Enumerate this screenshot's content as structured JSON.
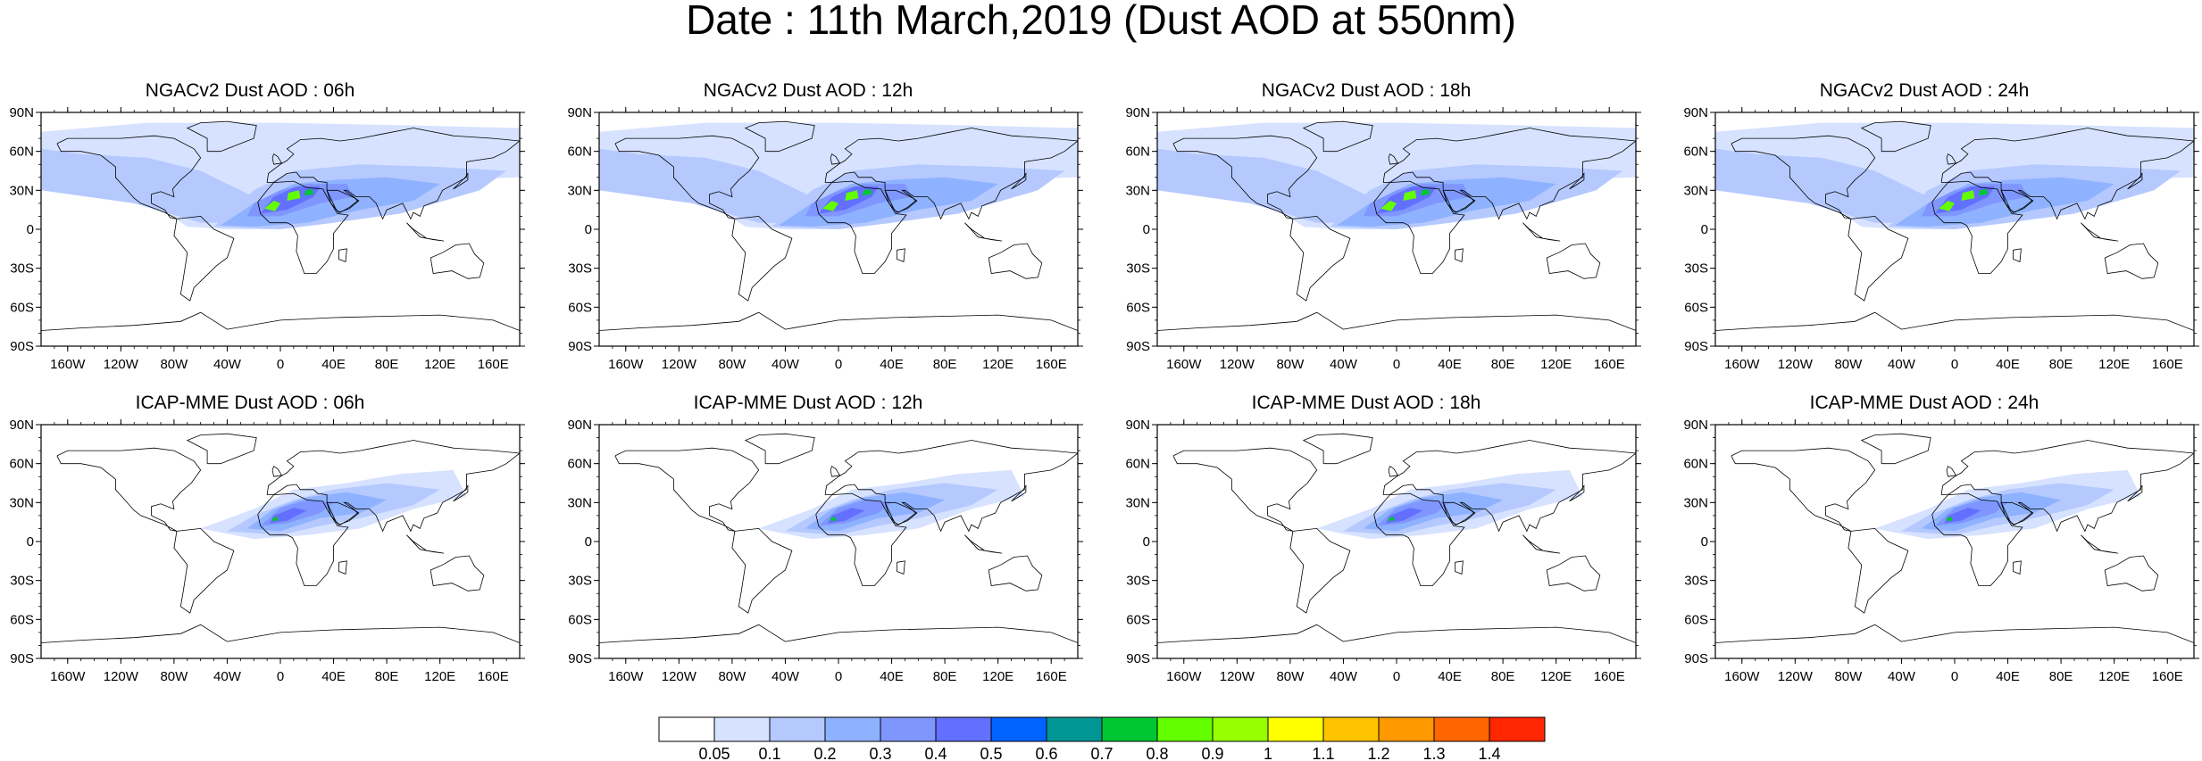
{
  "figure": {
    "title": "Date : 11th March,2019 (Dust AOD at 550nm)"
  },
  "panels": [
    {
      "title": "NGACv2 Dust AOD : 06h",
      "model": "NGACv2",
      "hour": "06h"
    },
    {
      "title": "NGACv2 Dust AOD : 12h",
      "model": "NGACv2",
      "hour": "12h"
    },
    {
      "title": "NGACv2 Dust AOD : 18h",
      "model": "NGACv2",
      "hour": "18h"
    },
    {
      "title": "NGACv2 Dust AOD : 24h",
      "model": "NGACv2",
      "hour": "24h"
    },
    {
      "title": "ICAP-MME Dust AOD : 06h",
      "model": "ICAP-MME",
      "hour": "06h"
    },
    {
      "title": "ICAP-MME Dust AOD : 12h",
      "model": "ICAP-MME",
      "hour": "12h"
    },
    {
      "title": "ICAP-MME Dust AOD : 18h",
      "model": "ICAP-MME",
      "hour": "18h"
    },
    {
      "title": "ICAP-MME Dust AOD : 24h",
      "model": "ICAP-MME",
      "hour": "24h"
    }
  ],
  "axes": {
    "latitude_labels": [
      "90N",
      "60N",
      "30N",
      "0",
      "30S",
      "60S",
      "90S"
    ],
    "latitude_values": [
      90,
      60,
      30,
      0,
      -30,
      -60,
      -90
    ],
    "longitude_labels": [
      "160W",
      "120W",
      "80W",
      "40W",
      "0",
      "40E",
      "80E",
      "120E",
      "160E"
    ],
    "longitude_values": [
      -160,
      -120,
      -80,
      -40,
      0,
      40,
      80,
      120,
      160
    ]
  },
  "colorbar": {
    "levels": [
      "0.05",
      "0.1",
      "0.2",
      "0.3",
      "0.4",
      "0.5",
      "0.6",
      "0.7",
      "0.8",
      "0.9",
      "1",
      "1.1",
      "1.2",
      "1.3",
      "1.4"
    ],
    "colors": [
      "#ffffff",
      "#d6e2ff",
      "#b5c9ff",
      "#8eb2ff",
      "#7f96ff",
      "#6370ff",
      "#0063ff",
      "#009696",
      "#00c633",
      "#63ff00",
      "#96ff00",
      "#ffff00",
      "#ffc400",
      "#ff9900",
      "#ff6600",
      "#ff2600"
    ]
  }
}
